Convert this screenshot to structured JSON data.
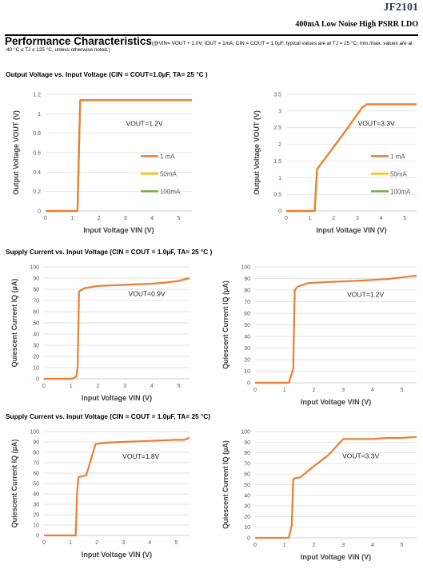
{
  "header": {
    "part": "JF2101",
    "subtitle": "400mA Low Noise High PSRR LDO"
  },
  "perf": {
    "title": "Performance Characteristics",
    "conditions": "(@VIN= VOUT + 1.0V, IOUT = 1mA, CIN = COUT = 1.0µF, typical values are at TJ = 25 °C; min./max. values are at -40 °C ≤ TJ ≤ 125 °C, unless otherwise noted.)"
  },
  "sections": [
    {
      "text": "Output Voltage vs. Input Voltage (CIN = COUT=1.0µF, TA= 25 °C )"
    },
    {
      "text": "Supply Current vs. Input Voltage (CIN = COUT = 1.0µF, TA= 25 °C )"
    },
    {
      "text": "Supply Current vs. Input Voltage (CIN = COUT = 1.0µF, TA= 25 °C)"
    }
  ],
  "chart_data": [
    {
      "type": "line",
      "title": "",
      "annotation": "VOUT=1.2V",
      "xlabel": "Input Voltage VIN (V)",
      "ylabel": "Output Voltage VOUT (V)",
      "xlim": [
        0,
        5.5
      ],
      "ylim": [
        0,
        1.2
      ],
      "xticks": [
        0,
        1,
        2,
        3,
        4,
        5
      ],
      "yticks": [
        0,
        0.2,
        0.4,
        0.6,
        0.8,
        1,
        1.2
      ],
      "ytick_labels": [
        "0",
        "0.2",
        "0.4",
        "0.6",
        "0.8",
        "1",
        "1.2"
      ],
      "legend": "right",
      "series": [
        {
          "name": "1 mA",
          "color": "#ed7d31",
          "x": [
            0,
            1.2,
            1.3,
            5.5
          ],
          "y": [
            0,
            0,
            1.14,
            1.14
          ]
        },
        {
          "name": "50mA",
          "color": "#ffc000",
          "x": [
            0,
            1.2,
            1.3,
            5.5
          ],
          "y": [
            0,
            0,
            1.14,
            1.14
          ]
        },
        {
          "name": "100mA",
          "color": "#70ad47",
          "x": [
            0,
            1.2,
            1.3,
            5.5
          ],
          "y": [
            0,
            0,
            1.14,
            1.14
          ]
        }
      ]
    },
    {
      "type": "line",
      "title": "",
      "annotation": "VOUT=3.3V",
      "xlabel": "Input Voltage VIN (V)",
      "ylabel": "Output Voltage VOUT (V)",
      "xlim": [
        0,
        5.5
      ],
      "ylim": [
        0,
        3.5
      ],
      "xticks": [
        0,
        1,
        2,
        3,
        4,
        5
      ],
      "yticks": [
        0,
        0.5,
        1,
        1.5,
        2,
        2.5,
        3,
        3.5
      ],
      "ytick_labels": [
        "0",
        "0.5",
        "1",
        "1.5",
        "2",
        "2.5",
        "3",
        "3.5"
      ],
      "legend": "right",
      "series": [
        {
          "name": "1 mA",
          "color": "#ed7d31",
          "x": [
            0,
            1.2,
            1.3,
            2.5,
            3.2,
            3.4,
            5.5
          ],
          "y": [
            0,
            0,
            1.25,
            2.4,
            3.1,
            3.2,
            3.2
          ]
        },
        {
          "name": "50mA",
          "color": "#ffc000",
          "x": [
            0,
            1.2,
            1.3,
            2.5,
            3.2,
            3.4,
            5.5
          ],
          "y": [
            0,
            0,
            1.25,
            2.4,
            3.1,
            3.2,
            3.2
          ]
        },
        {
          "name": "100mA",
          "color": "#70ad47",
          "x": [
            0,
            1.2,
            1.3,
            2.5,
            3.2,
            3.4,
            5.5
          ],
          "y": [
            0,
            0,
            1.25,
            2.4,
            3.1,
            3.2,
            3.2
          ]
        }
      ]
    },
    {
      "type": "line",
      "title": "",
      "annotation": "VOUT=0.9V",
      "xlabel": "Input Voltage VIN (V)",
      "ylabel": "Quiescent Current IQ (µA)",
      "xlim": [
        0,
        5.4
      ],
      "ylim": [
        0,
        100
      ],
      "xticks": [
        0,
        1,
        2,
        3,
        4,
        5
      ],
      "yticks": [
        0,
        10,
        20,
        30,
        40,
        50,
        60,
        70,
        80,
        90,
        100
      ],
      "ytick_labels": [
        "0",
        "10",
        "20",
        "30",
        "40",
        "50",
        "60",
        "70",
        "80",
        "90",
        "100"
      ],
      "legend": "none",
      "series": [
        {
          "color": "#ed7d31",
          "x": [
            0,
            1.05,
            1.2,
            1.25,
            1.3,
            1.5,
            2,
            3,
            4,
            4.5,
            5,
            5.4
          ],
          "y": [
            0,
            0,
            2,
            10,
            78,
            81,
            83,
            84,
            85,
            86,
            87.5,
            90
          ]
        }
      ]
    },
    {
      "type": "line",
      "title": "",
      "annotation": "VOUT=1.2V",
      "xlabel": "Input Voltage VIN (V)",
      "ylabel": "Quiescent Current IQ (µA)",
      "xlim": [
        0,
        5.5
      ],
      "ylim": [
        0,
        100
      ],
      "xticks": [
        0,
        1,
        2,
        3,
        4,
        5
      ],
      "yticks": [
        0,
        10,
        20,
        30,
        40,
        50,
        60,
        70,
        80,
        90,
        100
      ],
      "ytick_labels": [
        "0",
        "10",
        "20",
        "30",
        "40",
        "50",
        "60",
        "70",
        "80",
        "90",
        "100"
      ],
      "legend": "none",
      "series": [
        {
          "color": "#ed7d31",
          "x": [
            0,
            1.15,
            1.3,
            1.35,
            1.45,
            1.8,
            2.5,
            3.5,
            4.5,
            5.5
          ],
          "y": [
            0,
            0,
            12,
            80,
            83,
            86,
            87,
            88,
            89.5,
            92.5
          ]
        }
      ]
    },
    {
      "type": "line",
      "title": "",
      "annotation": "VOUT=1.8V",
      "xlabel": "Input Voltage VIN (V)",
      "ylabel": "Quiescent Current IQ (µA)",
      "xlim": [
        0,
        5.5
      ],
      "ylim": [
        0,
        100
      ],
      "xticks": [
        0,
        1,
        2,
        3,
        4,
        5
      ],
      "yticks": [
        0,
        10,
        20,
        30,
        40,
        50,
        60,
        70,
        80,
        90,
        100
      ],
      "ytick_labels": [
        "0",
        "10",
        "20",
        "30",
        "40",
        "50",
        "60",
        "70",
        "80",
        "90",
        "100"
      ],
      "legend": "none",
      "series": [
        {
          "color": "#ed7d31",
          "x": [
            0,
            1.2,
            1.25,
            1.3,
            1.6,
            1.95,
            2.5,
            3,
            4,
            5,
            5.3,
            5.5
          ],
          "y": [
            0,
            0,
            40,
            56,
            58,
            88,
            89.5,
            90,
            91,
            92,
            92,
            94
          ]
        }
      ]
    },
    {
      "type": "line",
      "title": "",
      "annotation": "VOUT=3.3V",
      "xlabel": "Input Voltage VIN (V)",
      "ylabel": "Quiescent Current IQ (µA)",
      "xlim": [
        0,
        5.5
      ],
      "ylim": [
        0,
        100
      ],
      "xticks": [
        0,
        1,
        2,
        3,
        4,
        5
      ],
      "yticks": [
        0,
        10,
        20,
        30,
        40,
        50,
        60,
        70,
        80,
        90,
        100
      ],
      "ytick_labels": [
        "0",
        "10",
        "20",
        "30",
        "40",
        "50",
        "60",
        "70",
        "80",
        "90",
        "100"
      ],
      "legend": "none",
      "series": [
        {
          "color": "#ed7d31",
          "x": [
            0,
            1.15,
            1.25,
            1.3,
            1.35,
            1.55,
            1.8,
            2.5,
            3,
            4,
            4.5,
            5,
            5.5
          ],
          "y": [
            0,
            0,
            12,
            55,
            56,
            57,
            63,
            78,
            93,
            93,
            94,
            94,
            95
          ]
        }
      ]
    }
  ]
}
